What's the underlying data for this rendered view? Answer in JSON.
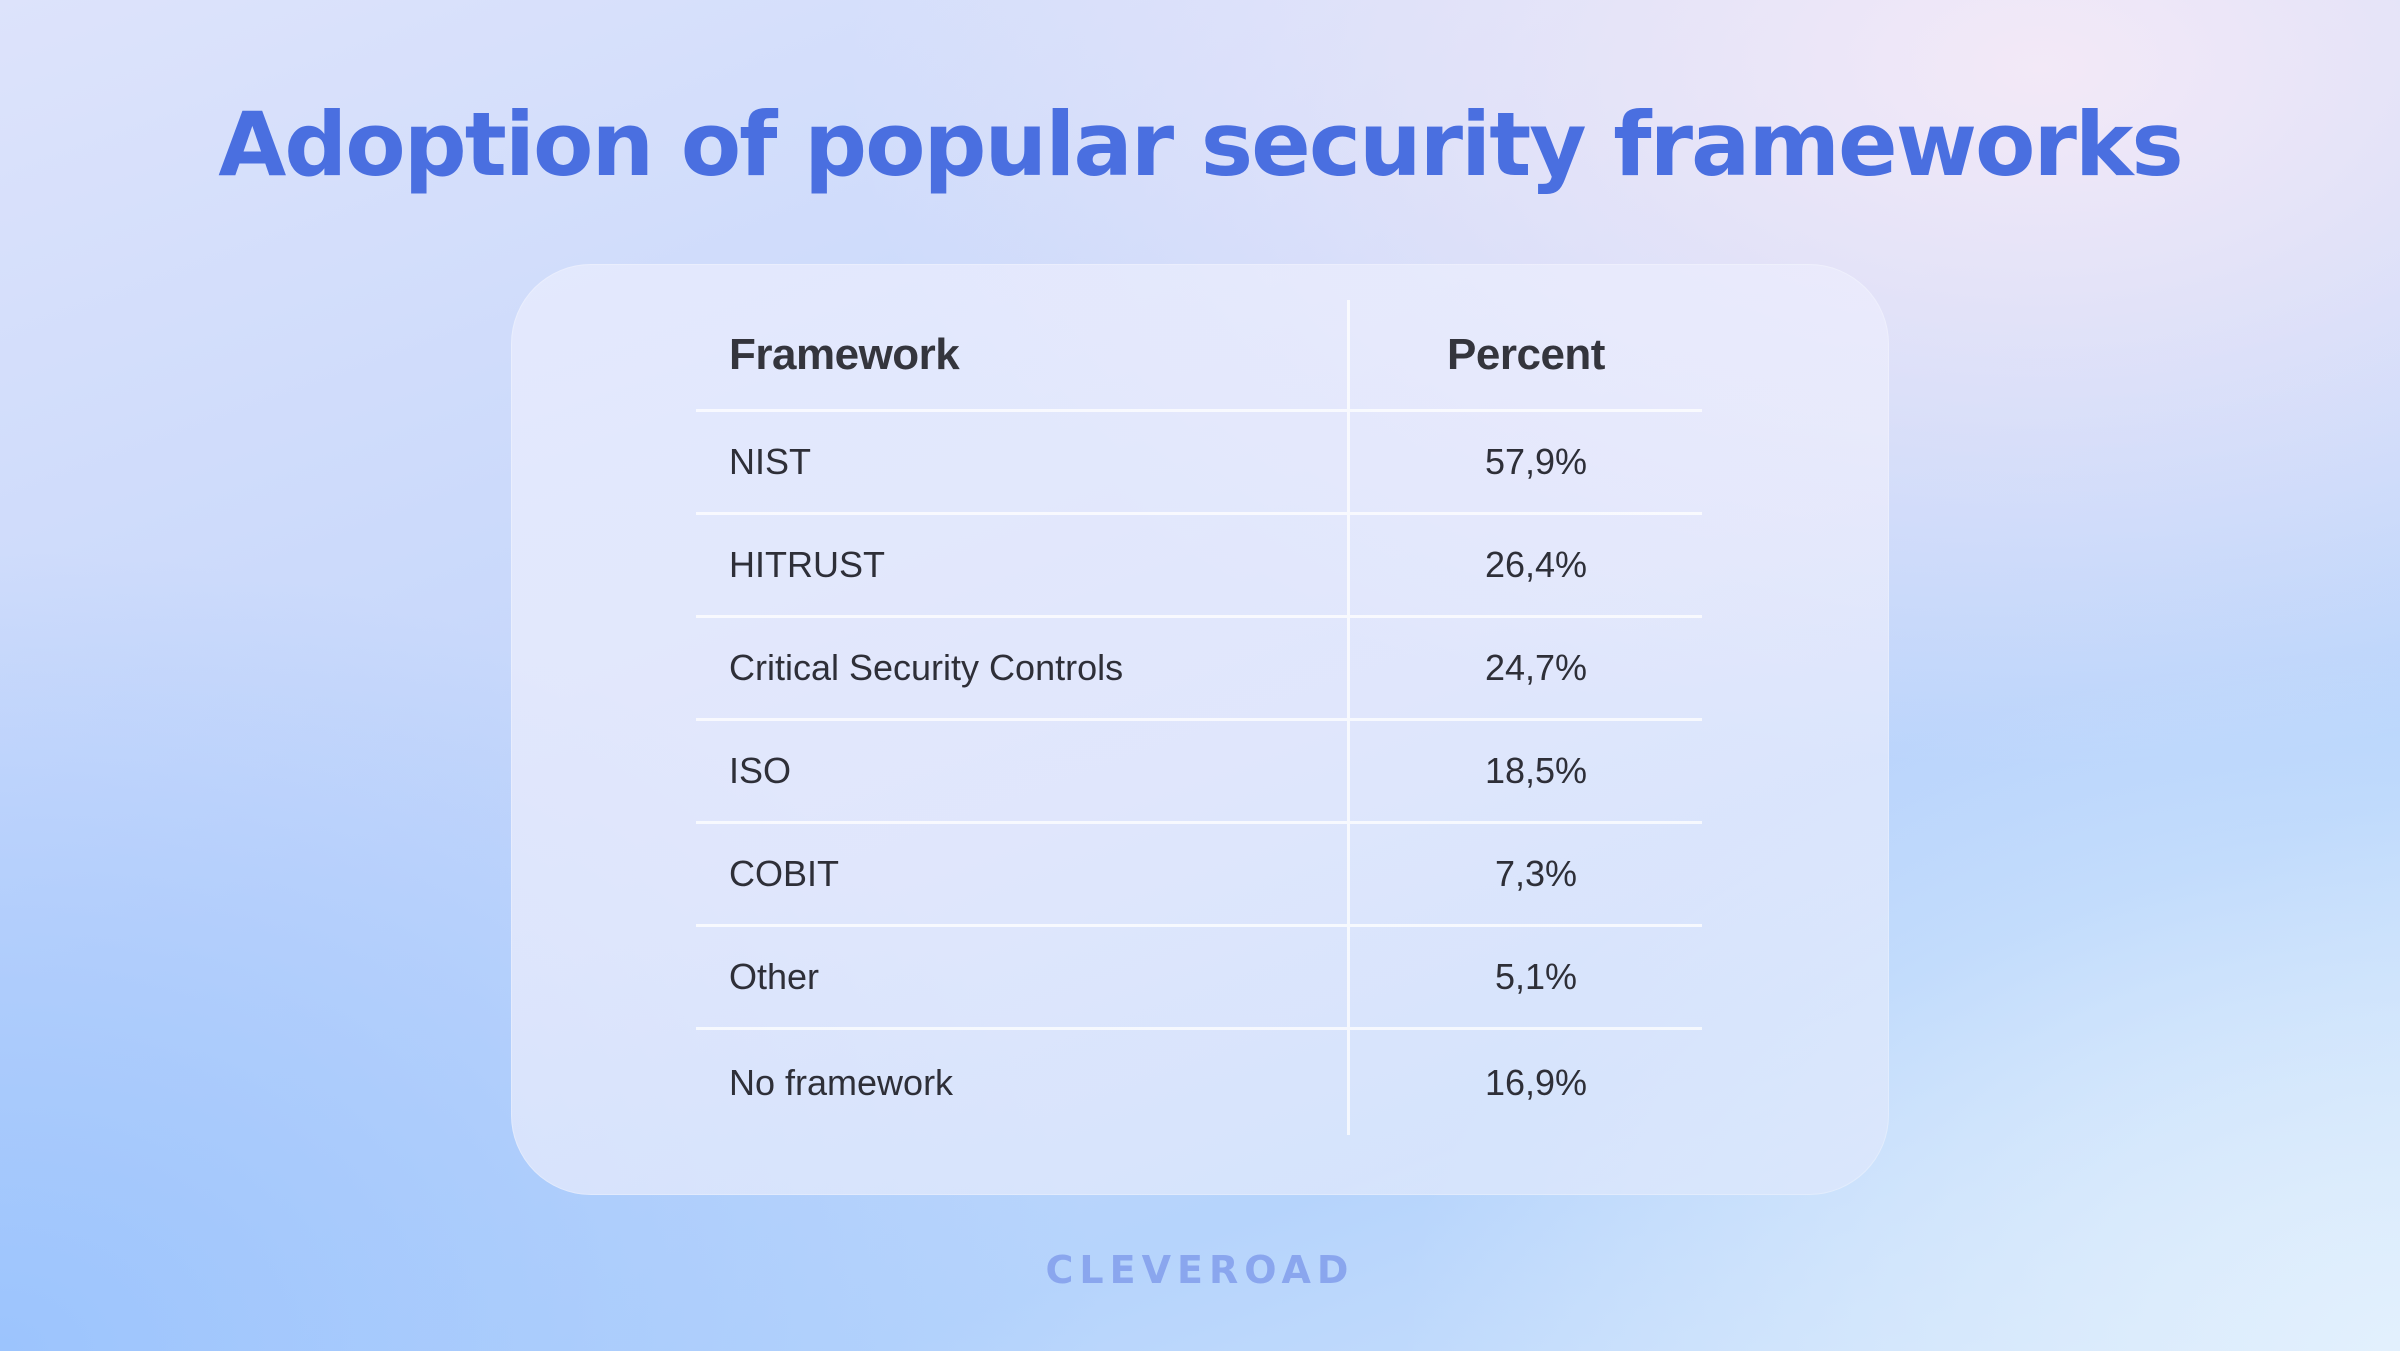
{
  "title": "Adoption of popular security frameworks",
  "brand": "CLEVEROAD",
  "colors": {
    "title": "#4a6fe0",
    "brand": "#8aa6ee",
    "text": "#2e2f38"
  },
  "chart_data": {
    "type": "table",
    "columns": [
      "Framework",
      "Percent"
    ],
    "rows": [
      {
        "framework": "NIST",
        "percent": "57,9%"
      },
      {
        "framework": "HITRUST",
        "percent": "26,4%"
      },
      {
        "framework": "Critical Security Controls",
        "percent": "24,7%"
      },
      {
        "framework": "ISO",
        "percent": "18,5%"
      },
      {
        "framework": "COBIT",
        "percent": "7,3%"
      },
      {
        "framework": "Other",
        "percent": "5,1%"
      },
      {
        "framework": "No framework",
        "percent": "16,9%"
      }
    ]
  }
}
